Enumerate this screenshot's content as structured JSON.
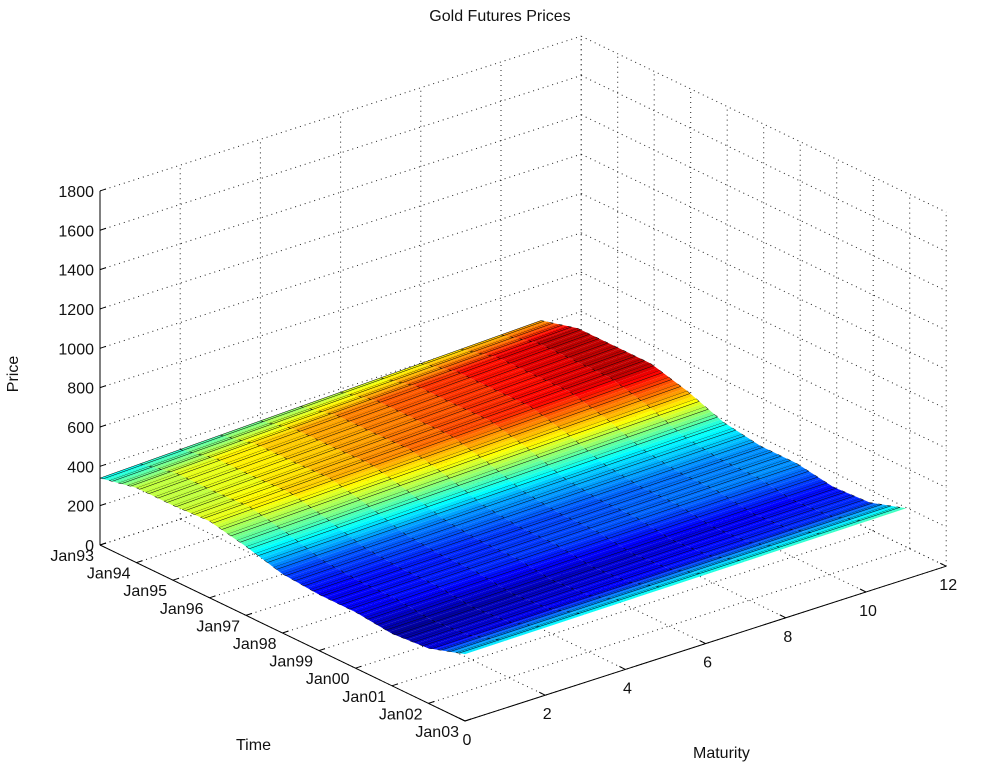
{
  "chart_data": {
    "type": "surface",
    "title": "Gold Futures Prices",
    "xlabel": "Time",
    "ylabel": "Maturity",
    "zlabel": "Price",
    "x_ticks": [
      "Jan93",
      "Jan94",
      "Jan95",
      "Jan96",
      "Jan97",
      "Jan98",
      "Jan99",
      "Jan00",
      "Jan01",
      "Jan02",
      "Jan03"
    ],
    "y_ticks": [
      0,
      2,
      4,
      6,
      8,
      10,
      12
    ],
    "z_ticks": [
      0,
      200,
      400,
      600,
      800,
      1000,
      1200,
      1400,
      1600,
      1800
    ],
    "xlim": [
      "Jan93",
      "Jan03"
    ],
    "ylim": [
      0,
      12
    ],
    "zlim": [
      0,
      1800
    ],
    "grid": true,
    "colormap": "jet",
    "price_by_year": {
      "years": [
        "Jan93",
        "Jan94",
        "Jan95",
        "Jan96",
        "Jan97",
        "Jan98",
        "Jan99",
        "Jan00",
        "Jan01",
        "Jan02",
        "Jan03"
      ],
      "price_at_maturity_0": [
        340,
        380,
        380,
        390,
        350,
        300,
        285,
        285,
        265,
        280,
        340
      ],
      "price_at_maturity_11": [
        420,
        470,
        470,
        470,
        420,
        350,
        320,
        320,
        290,
        300,
        360
      ]
    }
  }
}
